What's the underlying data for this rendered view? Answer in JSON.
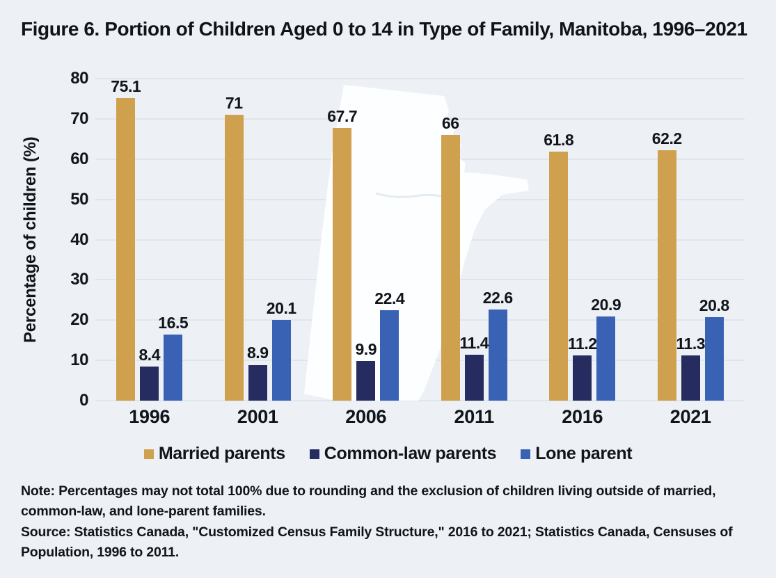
{
  "title": "Figure 6. Portion of Children Aged 0 to 14 in Type of Family, Manitoba, 1996–2021",
  "chart_data": {
    "type": "bar",
    "title": "Figure 6. Portion of Children Aged 0 to 14 in Type of Family, Manitoba, 1996–2021",
    "categories": [
      "1996",
      "2001",
      "2006",
      "2011",
      "2016",
      "2021"
    ],
    "series": [
      {
        "name": "Married parents",
        "color": "#CFA04E",
        "values": [
          75.1,
          71,
          67.7,
          66,
          61.8,
          62.2
        ]
      },
      {
        "name": "Common-law parents",
        "color": "#262C5F",
        "values": [
          8.4,
          8.9,
          9.9,
          11.4,
          11.2,
          11.3
        ]
      },
      {
        "name": "Lone parent",
        "color": "#3A62B4",
        "values": [
          16.5,
          20.1,
          22.4,
          22.6,
          20.9,
          20.8
        ]
      }
    ],
    "xlabel": "",
    "ylabel": "Percentage of children (%)",
    "ylim": [
      0,
      80
    ],
    "yticks": [
      0,
      10,
      20,
      30,
      40,
      50,
      60,
      70,
      80
    ],
    "grid": true,
    "legend_position": "bottom",
    "value_labels": true,
    "watermark": "manitoba-province-silhouette"
  },
  "notes": {
    "note": "Note: Percentages may not total 100% due to rounding and the exclusion of children living outside of married, common-law, and lone-parent families.",
    "source": "Source: Statistics Canada, \"Customized Census Family Structure,\" 2016 to 2021; Statistics Canada, Censuses of Population, 1996 to 2011."
  },
  "colors": {
    "background": "#EDF1F5",
    "gridline": "#DFE6EB",
    "text": "#10151B",
    "watermark_fill": "#FDFEFF"
  }
}
